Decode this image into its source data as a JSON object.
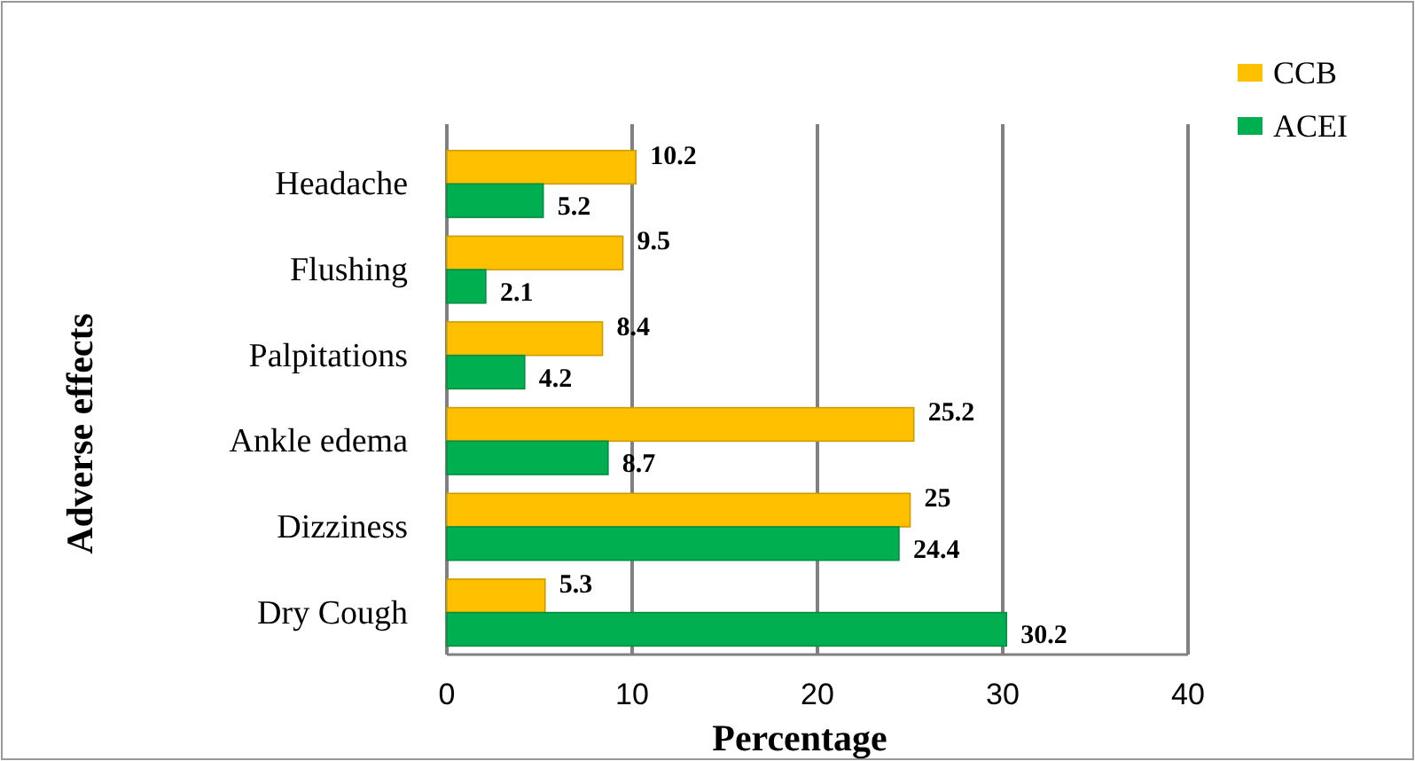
{
  "chart_data": {
    "type": "bar",
    "orientation": "horizontal",
    "categories": [
      "Headache",
      "Flushing",
      "Palpitations",
      "Ankle edema",
      "Dizziness",
      "Dry Cough"
    ],
    "series": [
      {
        "name": "CCB",
        "color": "#ffc000",
        "values": [
          10.2,
          9.5,
          8.4,
          25.2,
          25,
          5.3
        ]
      },
      {
        "name": "ACEI",
        "color": "#00b050",
        "values": [
          5.2,
          2.1,
          4.2,
          8.7,
          24.4,
          30.2
        ]
      }
    ],
    "xlim": [
      0,
      40
    ],
    "xticks": [
      0,
      10,
      20,
      30,
      40
    ],
    "grid": "x",
    "legend": "top right",
    "data_labels": true,
    "xlabel": "Percentage",
    "ylabel": "Adverse effects"
  }
}
